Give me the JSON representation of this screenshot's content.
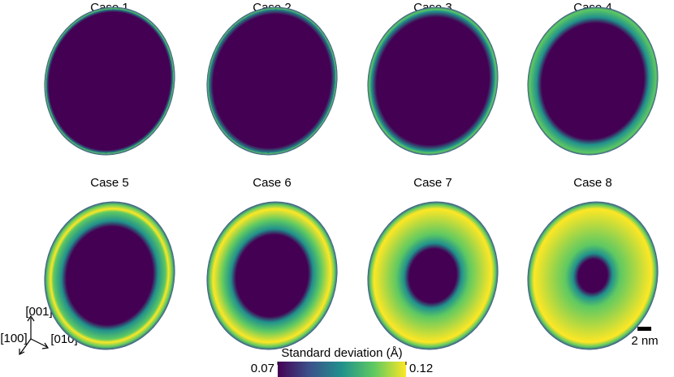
{
  "panels": [
    {
      "title": "Case 1"
    },
    {
      "title": "Case 2"
    },
    {
      "title": "Case 3"
    },
    {
      "title": "Case 4"
    },
    {
      "title": "Case 5"
    },
    {
      "title": "Case 6"
    },
    {
      "title": "Case 7"
    },
    {
      "title": "Case 8"
    }
  ],
  "colorbar": {
    "label": "Standard deviation (Å)",
    "range": [
      0.07,
      0.12
    ],
    "ticks": [
      0.07,
      0.12
    ],
    "colors": [
      "#440154",
      "#3b528b",
      "#21918c",
      "#5ec962",
      "#fde725"
    ]
  },
  "axes": {
    "up": "[001]",
    "left": "[100]",
    "right": "[010]"
  },
  "scale_bar": {
    "label": "2 nm"
  }
}
